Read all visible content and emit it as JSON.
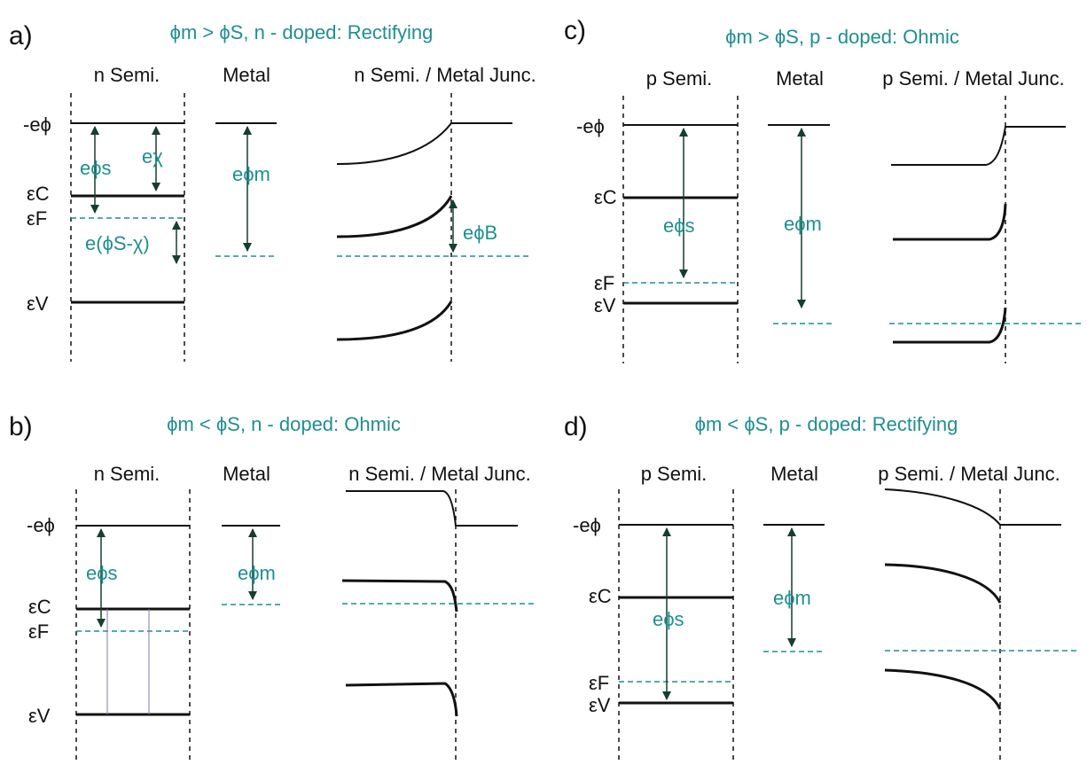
{
  "colors": {
    "accent": "#1f8f8f",
    "line": "#111111",
    "arrow": "#173d2e",
    "thin": "#7b7fa8"
  },
  "panels": {
    "a": {
      "label": "a)",
      "title": "ϕm > ϕS, n - doped: Rectifying",
      "col_semi": "n Semi.",
      "col_metal": "Metal",
      "col_junc": "n Semi. / Metal Junc.",
      "level_vac": "-eϕ",
      "level_c": "εC",
      "level_f": "εF",
      "level_v": "εV",
      "phi_s": "eϕs",
      "chi": "eχ",
      "phi_s_minus_chi": "e(ϕS-χ)",
      "phi_m": "eϕm",
      "phi_b": "eϕB"
    },
    "b": {
      "label": "b)",
      "title": "ϕm < ϕS, n - doped: Ohmic",
      "col_semi": "n Semi.",
      "col_metal": "Metal",
      "col_junc": "n Semi. / Metal Junc.",
      "level_vac": "-eϕ",
      "level_c": "εC",
      "level_f": "εF",
      "level_v": "εV",
      "phi_s": "eϕs",
      "phi_m": "eϕm"
    },
    "c": {
      "label": "c)",
      "title": "ϕm > ϕS, p - doped: Ohmic",
      "col_semi": "p Semi.",
      "col_metal": "Metal",
      "col_junc": "p Semi. / Metal Junc.",
      "level_vac": "-eϕ",
      "level_c": "εC",
      "level_f": "εF",
      "level_v": "εV",
      "phi_s": "eϕs",
      "phi_m": "eϕm"
    },
    "d": {
      "label": "d)",
      "title": "ϕm < ϕS, p - doped: Rectifying",
      "col_semi": "p Semi.",
      "col_metal": "Metal",
      "col_junc": "p Semi. / Metal Junc.",
      "level_vac": "-eϕ",
      "level_c": "εC",
      "level_f": "εF",
      "level_v": "εV",
      "phi_s": "eϕs",
      "phi_m": "eϕm"
    }
  }
}
